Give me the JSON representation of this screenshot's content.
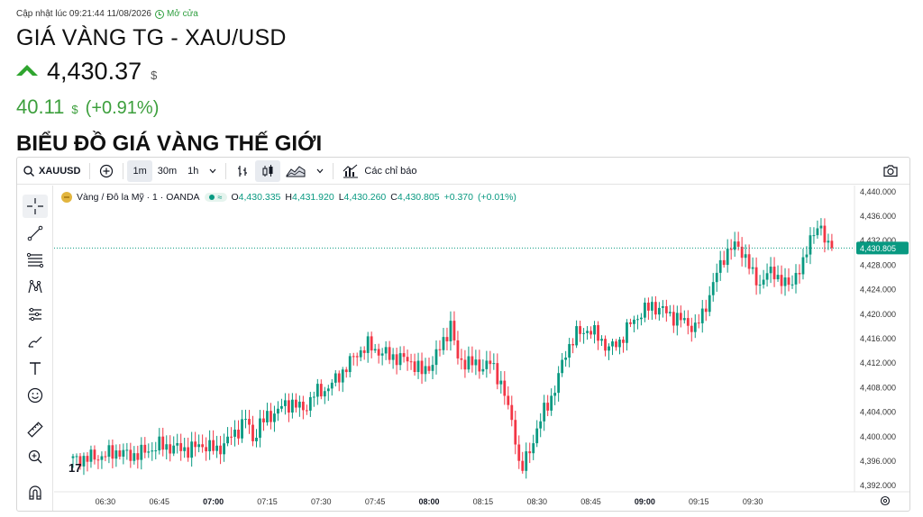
{
  "header": {
    "update_label": "Cập nhật lúc 09:21:44 11/08/2026",
    "market_status": "Mở cửa",
    "title": "GIÁ VÀNG TG - XAU/USD",
    "price": "4,430.37",
    "currency": "$",
    "change": "40.11",
    "change_pct": "(+0.91%)",
    "section_title": "BIỂU ĐỒ GIÁ VÀNG THẾ GIỚI"
  },
  "toolbar": {
    "symbol": "XAUUSD",
    "intervals": [
      "1m",
      "30m",
      "1h"
    ],
    "active_interval": "1m",
    "indicators_label": "Các chỉ báo"
  },
  "legend": {
    "title": "Vàng / Đô la Mỹ · 1 · OANDA",
    "o_label": "O",
    "o_value": "4,430.335",
    "h_label": "H",
    "h_value": "4,431.920",
    "l_label": "L",
    "l_value": "4,430.260",
    "c_label": "C",
    "c_value": "4,430.805",
    "change_value": "+0.370",
    "change_pct": "(+0.01%)"
  },
  "colors": {
    "up": "#089981",
    "down": "#f23645",
    "accent_green": "#3c9f3c",
    "last_price_bg": "#089981"
  },
  "chart_data": {
    "type": "candlestick",
    "title": "Vàng / Đô la Mỹ · 1 · OANDA",
    "x_ticks": [
      "06:30",
      "06:45",
      "07:00",
      "07:15",
      "07:30",
      "07:45",
      "08:00",
      "08:15",
      "08:30",
      "08:45",
      "09:00",
      "09:15",
      "09:30"
    ],
    "y_ticks": [
      "4,440.000",
      "4,436.000",
      "4,432.000",
      "4,428.000",
      "4,424.000",
      "4,420.000",
      "4,416.000",
      "4,412.000",
      "4,408.000",
      "4,404.000",
      "4,400.000",
      "4,396.000",
      "4,392.000"
    ],
    "ylim": [
      4390,
      4440
    ],
    "last_price": "4,430.805",
    "time_range": [
      "06:21",
      "09:21"
    ],
    "closes": [
      [
        0,
        4396.2
      ],
      [
        4,
        4396.5
      ],
      [
        8,
        4396.8
      ],
      [
        12,
        4397.6
      ],
      [
        16,
        4396.9
      ],
      [
        20,
        4397.5
      ],
      [
        24,
        4398.6
      ],
      [
        28,
        4398.2
      ],
      [
        32,
        4397.9
      ],
      [
        36,
        4398.7
      ],
      [
        40,
        4397.8
      ],
      [
        43,
        4399.4
      ],
      [
        46,
        4401.2
      ],
      [
        48,
        4403.0
      ],
      [
        50,
        4399.5
      ],
      [
        52,
        4402.2
      ],
      [
        55,
        4403.5
      ],
      [
        58,
        4404.8
      ],
      [
        61,
        4405.6
      ],
      [
        64,
        4404.3
      ],
      [
        67,
        4407.0
      ],
      [
        70,
        4407.6
      ],
      [
        73,
        4409.2
      ],
      [
        76,
        4411.4
      ],
      [
        79,
        4413.6
      ],
      [
        82,
        4414.9
      ],
      [
        85,
        4413.9
      ],
      [
        88,
        4413.2
      ],
      [
        91,
        4412.8
      ],
      [
        94,
        4412.3
      ],
      [
        97,
        4410.5
      ],
      [
        100,
        4412.1
      ],
      [
        103,
        4415.6
      ],
      [
        105,
        4418.4
      ],
      [
        107,
        4412.5
      ],
      [
        110,
        4412.2
      ],
      [
        113,
        4411.4
      ],
      [
        116,
        4412.0
      ],
      [
        119,
        4408.9
      ],
      [
        121,
        4404.6
      ],
      [
        123,
        4400.0
      ],
      [
        124,
        4395.5
      ],
      [
        125,
        4394.9
      ],
      [
        127,
        4397.8
      ],
      [
        129,
        4401.2
      ],
      [
        131,
        4404.2
      ],
      [
        134,
        4407.7
      ],
      [
        137,
        4413.9
      ],
      [
        140,
        4416.7
      ],
      [
        143,
        4417.5
      ],
      [
        146,
        4416.4
      ],
      [
        149,
        4414.3
      ],
      [
        152,
        4415.6
      ],
      [
        155,
        4418.4
      ],
      [
        158,
        4420.2
      ],
      [
        161,
        4421.4
      ],
      [
        164,
        4420.6
      ],
      [
        167,
        4419.6
      ],
      [
        170,
        4418.8
      ],
      [
        173,
        4417.7
      ],
      [
        175,
        4419.9
      ],
      [
        177,
        4423.2
      ],
      [
        179,
        4426.6
      ],
      [
        181,
        4429.5
      ],
      [
        183,
        4430.8
      ],
      [
        185,
        4431.1
      ],
      [
        187,
        4429.3
      ],
      [
        189,
        4426.3
      ],
      [
        191,
        4425.0
      ],
      [
        193,
        4426.5
      ],
      [
        195,
        4426.9
      ],
      [
        197,
        4425.3
      ],
      [
        199,
        4424.6
      ],
      [
        201,
        4426.6
      ],
      [
        203,
        4427.8
      ],
      [
        205,
        4432.9
      ],
      [
        207,
        4434.0
      ],
      [
        209,
        4432.5
      ],
      [
        211,
        4430.8
      ]
    ]
  }
}
